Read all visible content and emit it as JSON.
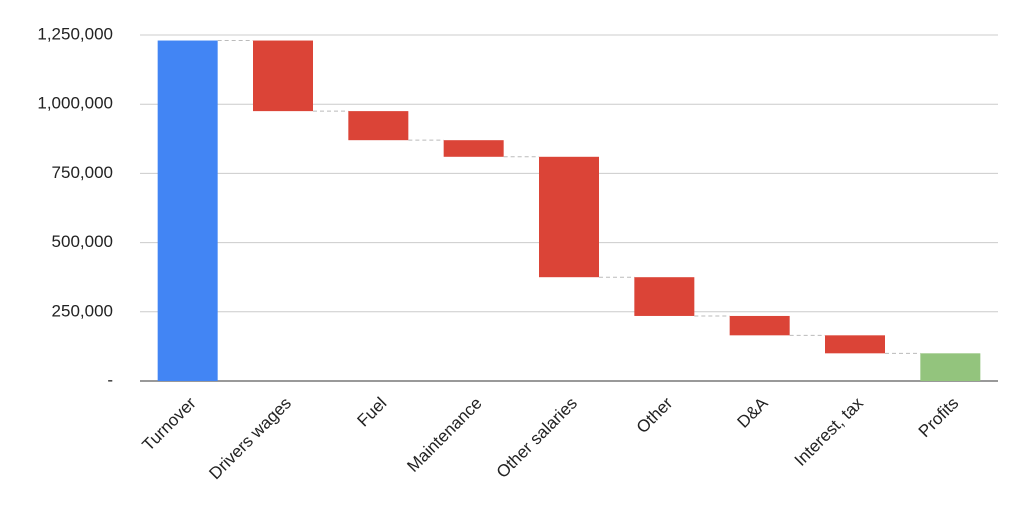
{
  "chart_data": {
    "type": "waterfall",
    "categories": [
      "Turnover",
      "Drivers wages",
      "Fuel",
      "Maintenance",
      "Other salaries",
      "Other",
      "D&A",
      "Interest, tax",
      "Profits"
    ],
    "values": [
      1230000,
      -255000,
      -105000,
      -60000,
      -435000,
      -140000,
      -70000,
      -65000,
      100000
    ],
    "colors": [
      "#4285f4",
      "#db4437",
      "#db4437",
      "#db4437",
      "#db4437",
      "#db4437",
      "#db4437",
      "#db4437",
      "#93c47d"
    ],
    "ylim": [
      0,
      1250000
    ],
    "yticks": [
      {
        "value": 0,
        "label": "-"
      },
      {
        "value": 250000,
        "label": "250,000"
      },
      {
        "value": 500000,
        "label": "500,000"
      },
      {
        "value": 750000,
        "label": "750,000"
      },
      {
        "value": 1000000,
        "label": "1,000,000"
      },
      {
        "value": 1250000,
        "label": "1,250,000"
      }
    ],
    "grid": true
  }
}
